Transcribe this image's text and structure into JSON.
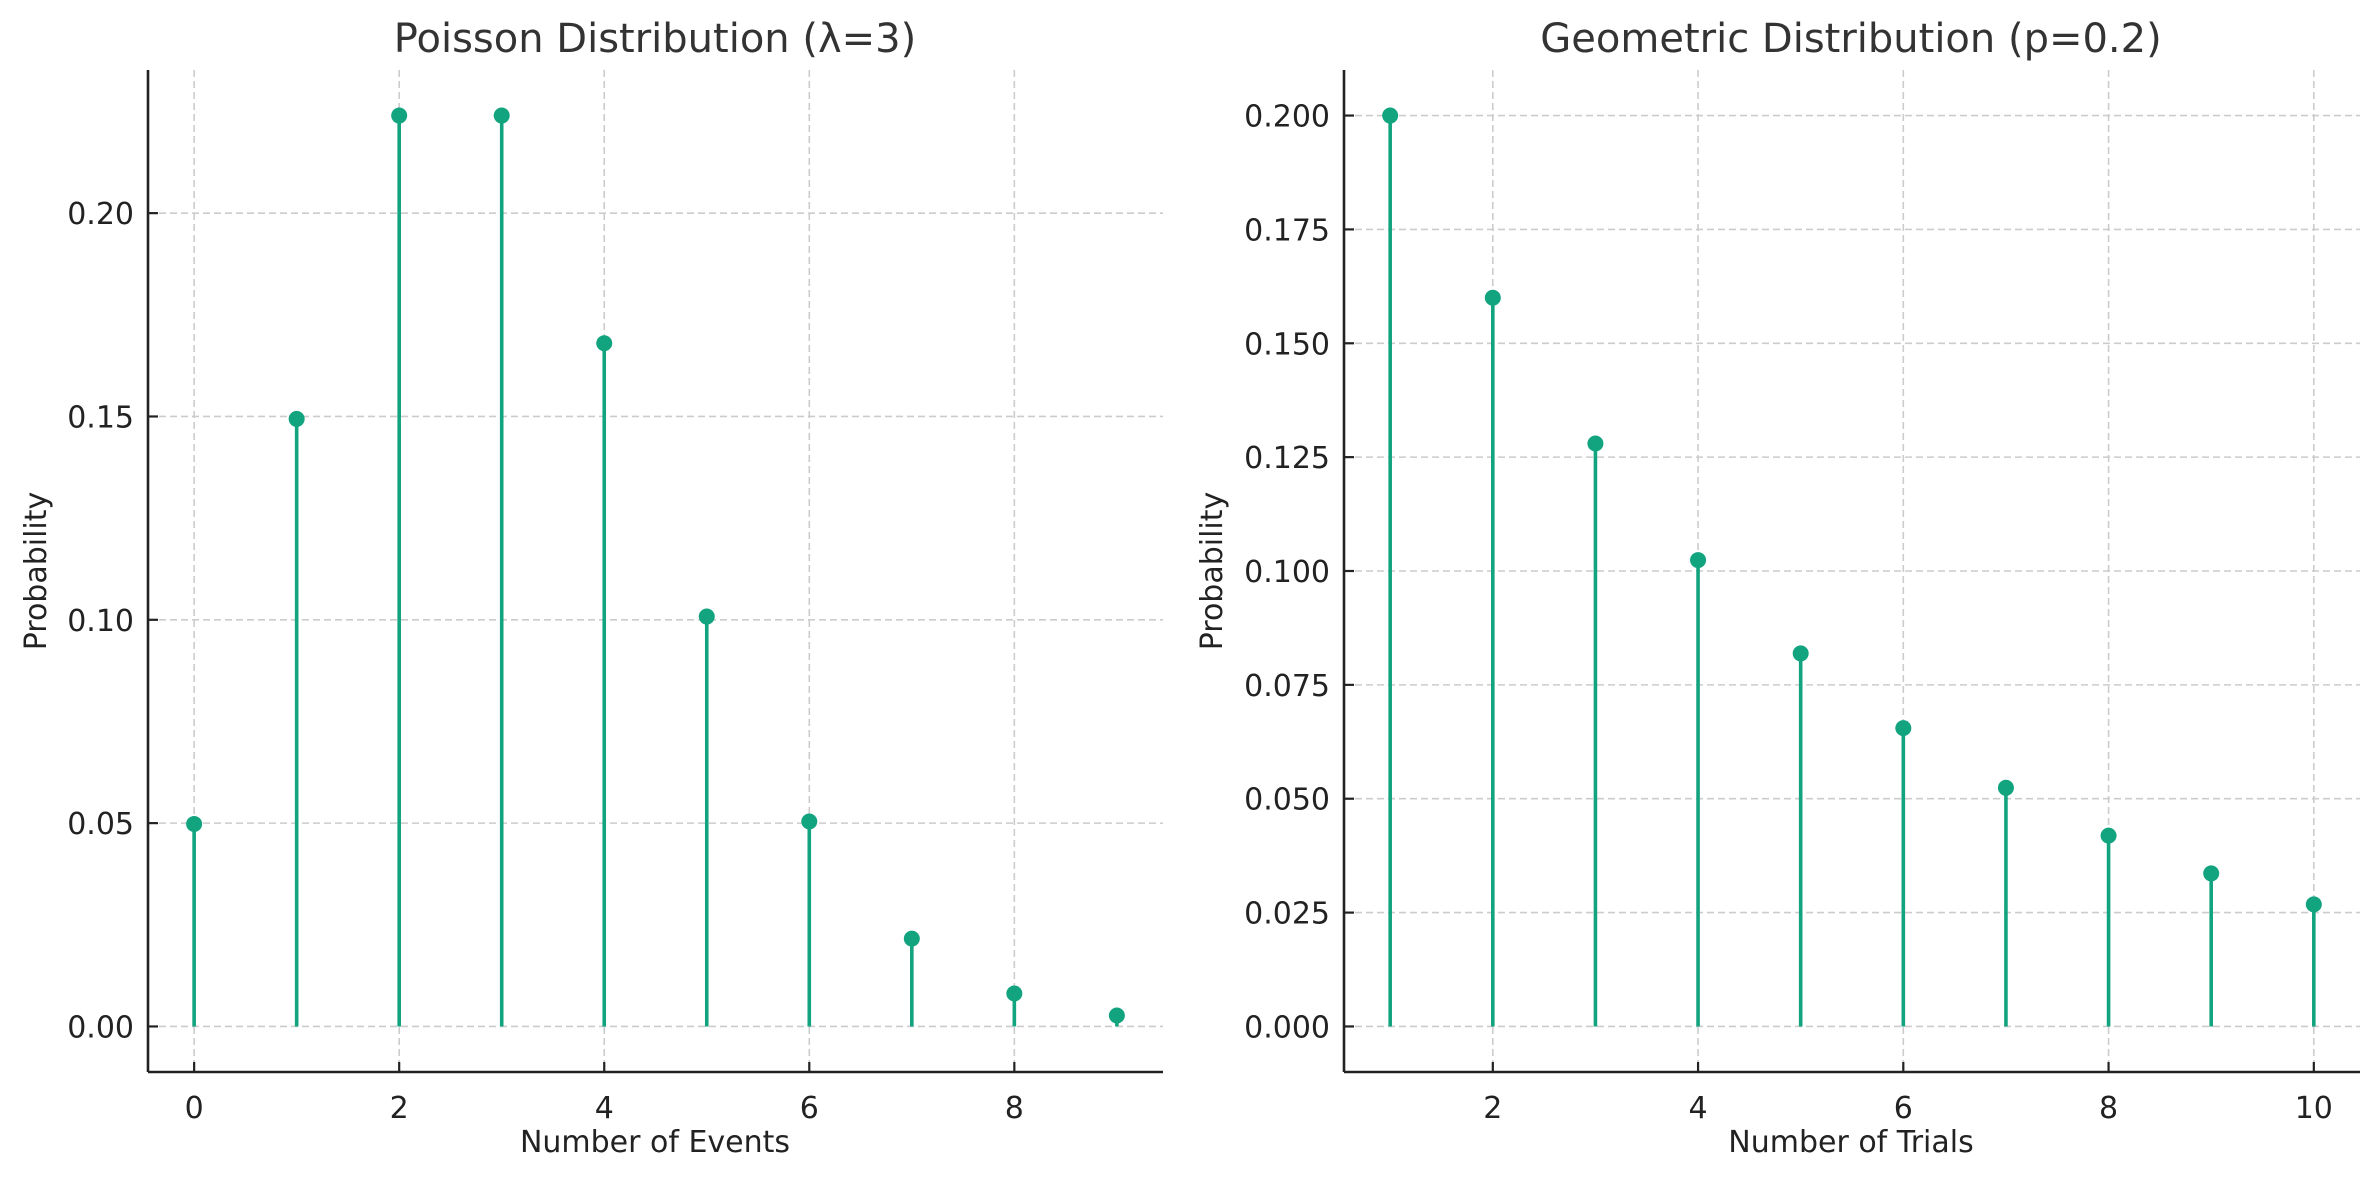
{
  "chart_data": [
    {
      "type": "stem",
      "title": "Poisson Distribution (λ=3)",
      "xlabel": "Number of Events",
      "ylabel": "Probability",
      "x": [
        0,
        1,
        2,
        3,
        4,
        5,
        6,
        7,
        8,
        9
      ],
      "values": [
        0.0498,
        0.1494,
        0.224,
        0.224,
        0.168,
        0.1008,
        0.0504,
        0.0216,
        0.0081,
        0.0027
      ],
      "xlim": [
        -0.45,
        9.45
      ],
      "ylim": [
        -0.0112,
        0.2352
      ],
      "xticks": [
        0,
        2,
        4,
        6,
        8
      ],
      "xtick_labels": [
        "0",
        "2",
        "4",
        "6",
        "8"
      ],
      "yticks": [
        0.0,
        0.05,
        0.1,
        0.15,
        0.2
      ],
      "ytick_labels": [
        "0.00",
        "0.05",
        "0.10",
        "0.15",
        "0.20"
      ],
      "grid": true,
      "color": "#12a37f"
    },
    {
      "type": "stem",
      "title": "Geometric Distribution (p=0.2)",
      "xlabel": "Number of Trials",
      "ylabel": "Probability",
      "x": [
        1,
        2,
        3,
        4,
        5,
        6,
        7,
        8,
        9,
        10
      ],
      "values": [
        0.2,
        0.16,
        0.128,
        0.1024,
        0.0819,
        0.0655,
        0.0524,
        0.0419,
        0.0336,
        0.0268
      ],
      "xlim": [
        0.55,
        10.45
      ],
      "ylim": [
        -0.01,
        0.21
      ],
      "xticks": [
        2,
        4,
        6,
        8,
        10
      ],
      "xtick_labels": [
        "2",
        "4",
        "6",
        "8",
        "10"
      ],
      "yticks": [
        0.0,
        0.025,
        0.05,
        0.075,
        0.1,
        0.125,
        0.15,
        0.175,
        0.2
      ],
      "ytick_labels": [
        "0.000",
        "0.025",
        "0.050",
        "0.075",
        "0.100",
        "0.125",
        "0.150",
        "0.175",
        "0.200"
      ],
      "grid": true,
      "color": "#12a37f"
    }
  ]
}
